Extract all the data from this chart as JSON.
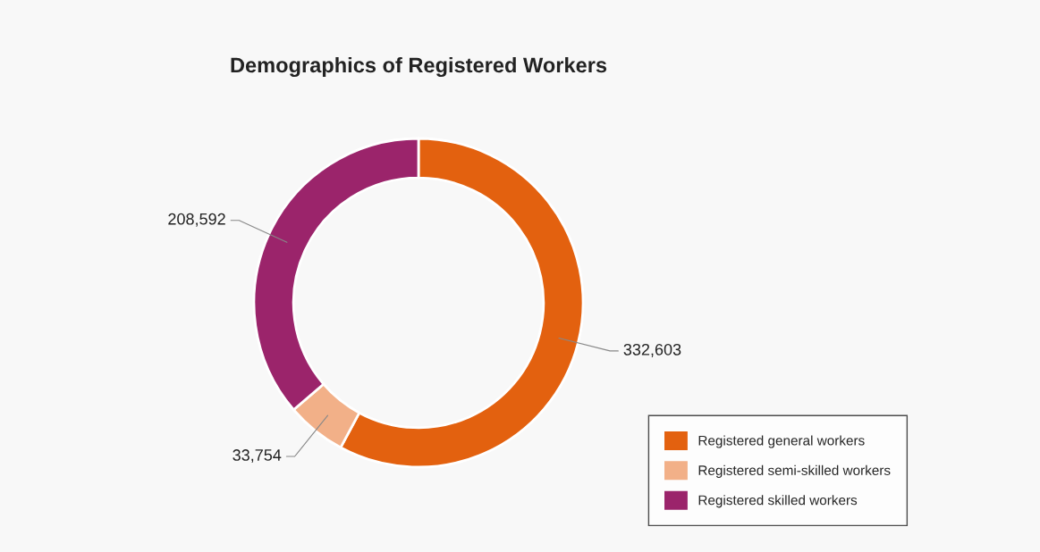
{
  "chart_data": {
    "type": "donut",
    "title": "Demographics of Registered Workers",
    "categories": [
      "Registered general workers",
      "Registered semi-skilled workers",
      "Registered skilled workers"
    ],
    "values": [
      332603,
      33754,
      208592
    ],
    "colors": [
      "#e3610f",
      "#f2b088",
      "#9b246b"
    ],
    "value_labels": [
      "332,603",
      "33,754",
      "208,592"
    ],
    "legend": "bottom right"
  }
}
